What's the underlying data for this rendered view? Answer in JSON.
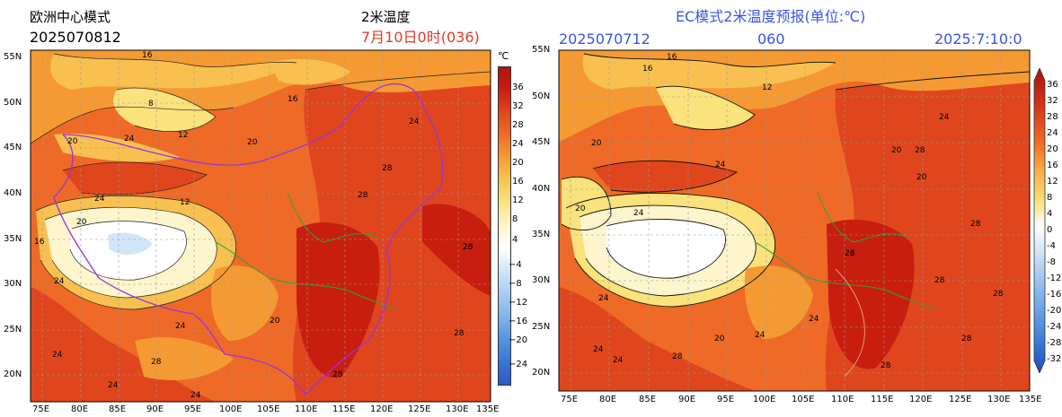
{
  "left_panel": {
    "title": "欧洲中心模式",
    "init_time": "2025070812",
    "variable": "2米温度",
    "valid_time": "7月10日0时(036)",
    "unit": "℃",
    "lat_labels": [
      "55N",
      "50N",
      "45N",
      "40N",
      "35N",
      "30N",
      "25N",
      "20N"
    ],
    "lon_labels": [
      "75E",
      "80E",
      "85E",
      "90E",
      "95E",
      "100E",
      "105E",
      "110E",
      "115E",
      "120E",
      "125E",
      "130E",
      "135E"
    ],
    "colorbar_labels": [
      "36",
      "32",
      "28",
      "24",
      "20",
      "16",
      "12",
      "8",
      "4",
      "−4",
      "−8",
      "−12",
      "−16",
      "−20",
      "−24"
    ],
    "contour_labels": [
      "16",
      "20",
      "24",
      "12",
      "8",
      "16",
      "20",
      "24",
      "28",
      "28",
      "24",
      "20",
      "16",
      "12",
      "24",
      "28",
      "20",
      "24",
      "24",
      "28",
      "24",
      "24",
      "28",
      "28"
    ]
  },
  "right_panel": {
    "title": "EC模式2米温度预报(单位:℃)",
    "init_time": "2025070712",
    "lead": "060",
    "valid_date": "2025:7:10:0",
    "lat_labels": [
      "55N",
      "50N",
      "45N",
      "40N",
      "35N",
      "30N",
      "25N",
      "20N"
    ],
    "lon_labels": [
      "75E",
      "80E",
      "85E",
      "90E",
      "95E",
      "100E",
      "105E",
      "110E",
      "115E",
      "120E",
      "125E",
      "130E",
      "135E"
    ],
    "colorbar_labels": [
      "36",
      "32",
      "28",
      "24",
      "20",
      "16",
      "12",
      "8",
      "4",
      "0",
      "-4",
      "-8",
      "-12",
      "-16",
      "-20",
      "-24",
      "-28",
      "-32"
    ],
    "contour_labels": [
      "16",
      "12",
      "20",
      "24",
      "28",
      "20",
      "24",
      "28",
      "24",
      "20",
      "16",
      "24",
      "28",
      "24",
      "20",
      "28",
      "24",
      "28",
      "24",
      "28",
      "28",
      "24",
      "28",
      "20"
    ]
  },
  "colors": {
    "deep_red": "#c81e10",
    "red": "#e0461e",
    "orange_red": "#ee6a26",
    "orange": "#f59a32",
    "light_orange": "#f8c050",
    "yellow": "#fae27c",
    "pale": "#fdf5cc",
    "white": "#ffffff",
    "light_blue": "#d2e6fa",
    "blue": "#5a96e6",
    "dark_blue": "#2a5ac8",
    "river": "#22aa33",
    "border_purple": "#9933dd",
    "province": "#b366cc"
  }
}
